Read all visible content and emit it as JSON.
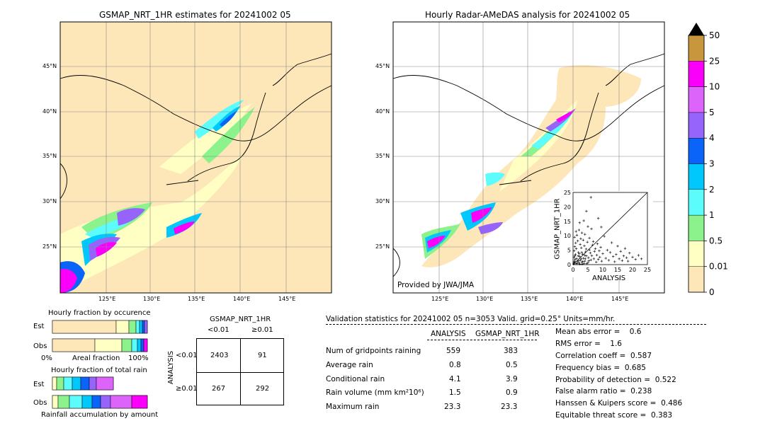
{
  "left_map": {
    "title": "GSMAP_NRT_1HR estimates for 20241002 05",
    "lat_labels": [
      "45°N",
      "40°N",
      "35°N",
      "30°N",
      "25°N"
    ],
    "lon_labels": [
      "125°E",
      "130°E",
      "135°E",
      "140°E",
      "145°E"
    ]
  },
  "right_map": {
    "title": "Hourly Radar-AMeDAS analysis for 20241002 05",
    "lat_labels": [
      "45°N",
      "40°N",
      "35°N",
      "30°N",
      "25°N"
    ],
    "lon_labels": [
      "125°E",
      "130°E",
      "135°E",
      "140°E",
      "145°E"
    ],
    "credit": "Provided by JWA/JMA"
  },
  "scatter": {
    "ylabel": "GSMAP_NRT_1HR",
    "xlabel": "ANALYSIS",
    "ticks": [
      "0",
      "5",
      "10",
      "15",
      "20",
      "25"
    ]
  },
  "colorbar": {
    "levels": [
      "0",
      "0.01",
      "0.5",
      "1",
      "2",
      "3",
      "4",
      "5",
      "10",
      "25",
      "50"
    ],
    "colors": [
      "#fde6b8",
      "#ffffc4",
      "#8cf28c",
      "#5cfcfc",
      "#00c8fc",
      "#0a64fa",
      "#9664fa",
      "#dc64fa",
      "#fa00fa",
      "#c8963c"
    ],
    "extend_color": "#000000"
  },
  "occurrence": {
    "title": "Hourly fraction by occurence",
    "rows": [
      "Est",
      "Obs"
    ],
    "axis_left": "0%",
    "axis_mid": "Areal fraction",
    "axis_right": "100%"
  },
  "total_rain": {
    "title": "Hourly fraction of total rain",
    "rows": [
      "Est",
      "Obs"
    ],
    "axis_label": "Rainfall accumulation by amount"
  },
  "contingency": {
    "col_title": "GSMAP_NRT_1HR",
    "col_labels": [
      "<0.01",
      "≥0.01"
    ],
    "row_title": "ANALYSIS",
    "row_labels": [
      "<0.01",
      "≥0.01"
    ],
    "cells": [
      [
        "2403",
        "91"
      ],
      [
        "267",
        "292"
      ]
    ]
  },
  "validation": {
    "header": "Validation statistics for 20241002 05  n=3053 Valid. grid=0.25° Units=mm/hr.",
    "col_analysis": "ANALYSIS",
    "col_gsmap": "GSMAP_NRT_1HR",
    "rows": [
      {
        "label": "Num of gridpoints raining",
        "analysis": "559",
        "gsmap": "383"
      },
      {
        "label": "Average rain",
        "analysis": "0.8",
        "gsmap": "0.5"
      },
      {
        "label": "Conditional rain",
        "analysis": "4.1",
        "gsmap": "3.9"
      },
      {
        "label": "Rain volume (mm km²10⁶)",
        "analysis": "1.5",
        "gsmap": "0.9"
      },
      {
        "label": "Maximum rain",
        "analysis": "23.3",
        "gsmap": "23.3"
      }
    ],
    "scores": [
      "Mean abs error =    0.6",
      "RMS error =    1.6",
      "Correlation coeff =  0.587",
      "Frequency bias =  0.685",
      "Probability of detection =  0.522",
      "False alarm ratio =  0.238",
      "Hanssen & Kuipers score =  0.486",
      "Equitable threat score =  0.383"
    ]
  },
  "chart_data": {
    "type": "scatter",
    "xlabel": "ANALYSIS",
    "ylabel": "GSMAP_NRT_1HR",
    "xlim": [
      0,
      25
    ],
    "ylim": [
      0,
      25
    ],
    "points": [
      [
        0.3,
        0.5
      ],
      [
        0.5,
        1.2
      ],
      [
        1,
        0.4
      ],
      [
        1.2,
        2.1
      ],
      [
        0.8,
        3.5
      ],
      [
        1.5,
        1.0
      ],
      [
        2,
        0.6
      ],
      [
        2.2,
        2.8
      ],
      [
        0.4,
        4.8
      ],
      [
        1.8,
        4.2
      ],
      [
        2.5,
        1.5
      ],
      [
        3,
        0.8
      ],
      [
        3.2,
        3.6
      ],
      [
        0.6,
        6.2
      ],
      [
        1.1,
        5.5
      ],
      [
        2.8,
        5.8
      ],
      [
        3.5,
        2.2
      ],
      [
        4,
        1.2
      ],
      [
        4.2,
        4.4
      ],
      [
        0.9,
        7.5
      ],
      [
        1.6,
        8.2
      ],
      [
        2.4,
        7.0
      ],
      [
        3.8,
        6.5
      ],
      [
        4.5,
        3.0
      ],
      [
        5,
        0.7
      ],
      [
        5.2,
        2.4
      ],
      [
        5.5,
        5.1
      ],
      [
        0.5,
        9.5
      ],
      [
        1.3,
        10.2
      ],
      [
        2.6,
        9.0
      ],
      [
        3.4,
        8.5
      ],
      [
        4.8,
        7.8
      ],
      [
        5.8,
        4.0
      ],
      [
        6,
        1.6
      ],
      [
        6.3,
        3.1
      ],
      [
        6.5,
        6.8
      ],
      [
        1.0,
        11.5
      ],
      [
        2.0,
        12.0
      ],
      [
        3.0,
        11.0
      ],
      [
        4.0,
        10.5
      ],
      [
        5.5,
        9.2
      ],
      [
        6.8,
        8.0
      ],
      [
        7,
        2.0
      ],
      [
        7.2,
        4.6
      ],
      [
        7.5,
        5.5
      ],
      [
        7.8,
        0.9
      ],
      [
        8,
        3.3
      ],
      [
        8.2,
        7.2
      ],
      [
        8.5,
        1.8
      ],
      [
        8.8,
        4.8
      ],
      [
        9,
        2.6
      ],
      [
        9.3,
        6.0
      ],
      [
        9.6,
        1.2
      ],
      [
        10,
        3.8
      ],
      [
        10.5,
        9.8
      ],
      [
        11,
        2.2
      ],
      [
        11.5,
        5.0
      ],
      [
        12,
        1.5
      ],
      [
        12.5,
        4.2
      ],
      [
        13,
        7.6
      ],
      [
        13.5,
        2.8
      ],
      [
        14,
        1.0
      ],
      [
        14.5,
        3.5
      ],
      [
        15,
        6.4
      ],
      [
        15.5,
        2.0
      ],
      [
        16,
        4.6
      ],
      [
        16.5,
        1.4
      ],
      [
        17,
        3.0
      ],
      [
        17.5,
        5.6
      ],
      [
        18,
        2.4
      ],
      [
        18.5,
        1.2
      ],
      [
        19,
        4.0
      ],
      [
        20,
        2.6
      ],
      [
        21,
        1.8
      ],
      [
        22,
        3.2
      ],
      [
        23,
        2.0
      ],
      [
        2.2,
        14.5
      ],
      [
        3.6,
        15.2
      ],
      [
        5.0,
        13.2
      ],
      [
        6.2,
        12.4
      ],
      [
        8.5,
        16.0
      ],
      [
        4.5,
        18.5
      ],
      [
        6.0,
        23.3
      ],
      [
        9.5,
        13.0
      ],
      [
        0.2,
        0.2
      ],
      [
        0.4,
        0.9
      ],
      [
        0.7,
        1.8
      ],
      [
        1.4,
        0.3
      ],
      [
        1.9,
        1.4
      ],
      [
        2.3,
        0.2
      ],
      [
        2.7,
        2.0
      ],
      [
        3.3,
        1.1
      ],
      [
        3.7,
        0.4
      ],
      [
        4.1,
        2.0
      ],
      [
        4.6,
        0.3
      ],
      [
        0.3,
        2.5
      ],
      [
        0.6,
        3.0
      ],
      [
        1.7,
        3.0
      ],
      [
        2.1,
        3.8
      ],
      [
        2.9,
        4.2
      ],
      [
        3.1,
        0.2
      ],
      [
        3.9,
        3.2
      ],
      [
        4.4,
        5.4
      ],
      [
        5.3,
        1.3
      ]
    ]
  }
}
